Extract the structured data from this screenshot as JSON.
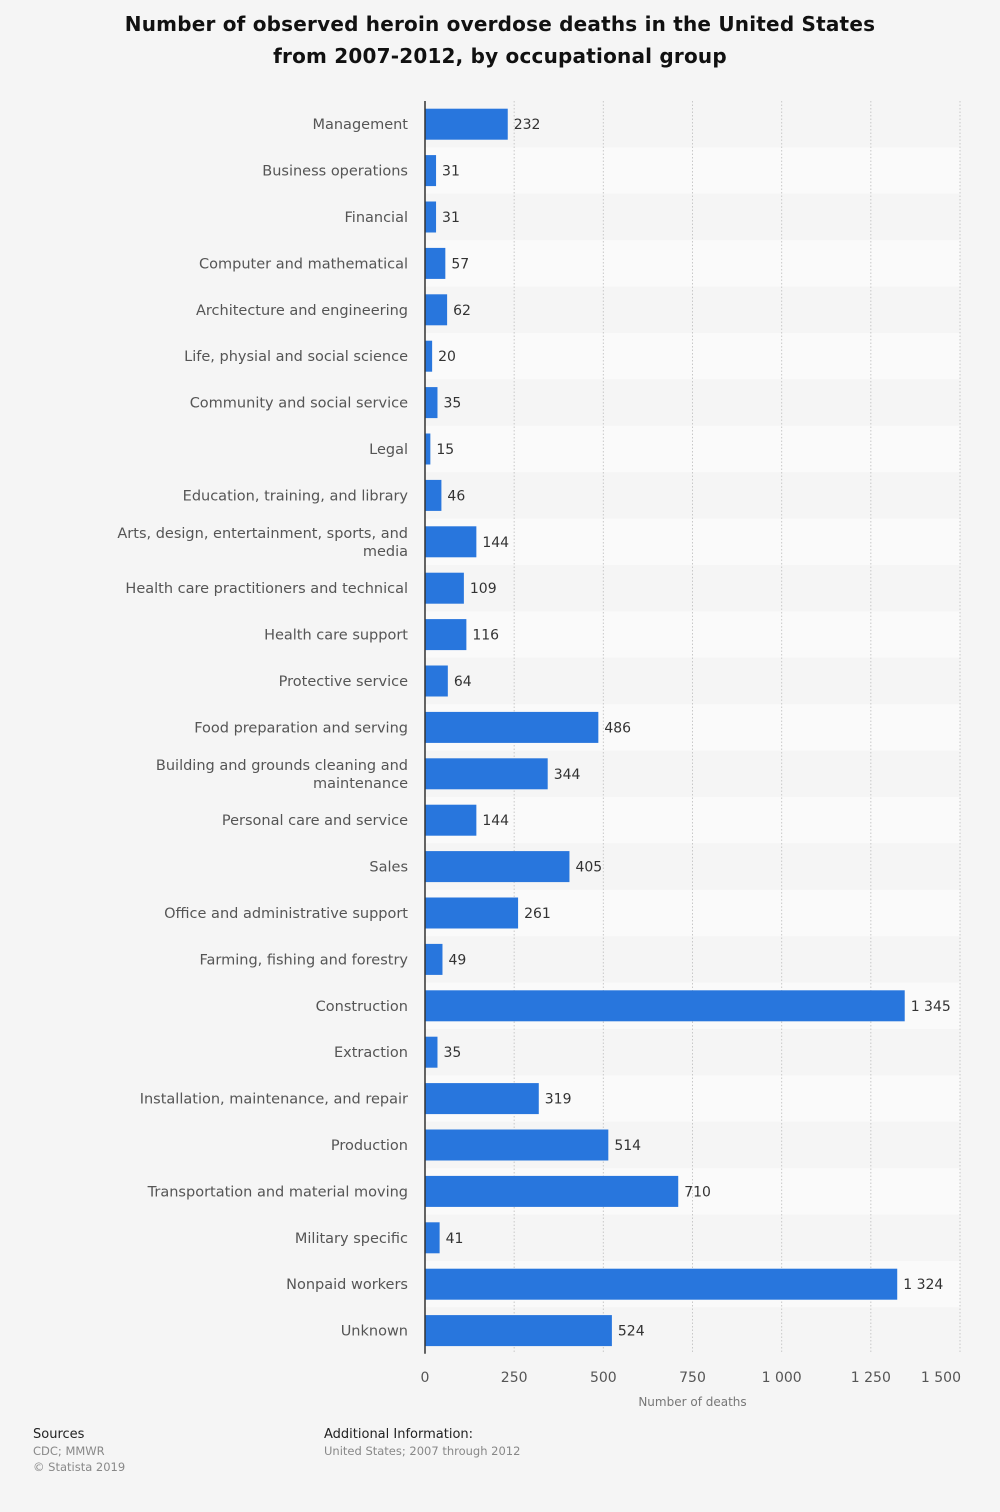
{
  "chart_data": {
    "type": "bar",
    "orientation": "horizontal",
    "title_line1": "Number of observed heroin overdose deaths in the United States",
    "title_line2": "from 2007-2012, by occupational group",
    "xlabel": "Number of deaths",
    "xlim": [
      0,
      1500
    ],
    "xticks": [
      0,
      250,
      500,
      750,
      1000,
      1250,
      1500
    ],
    "xtick_labels": [
      "0",
      "250",
      "500",
      "750",
      "1 000",
      "1 250",
      "1 500"
    ],
    "grid": true,
    "bar_color": "#2876dd",
    "categories": [
      "Management",
      "Business operations",
      "Financial",
      "Computer and mathematical",
      "Architecture and engineering",
      "Life, physial and social science",
      "Community and social service",
      "Legal",
      "Education, training, and library",
      "Arts, design, entertainment, sports, and media",
      "Health care practitioners and technical",
      "Health care support",
      "Protective service",
      "Food preparation and serving",
      "Building and grounds cleaning and maintenance",
      "Personal care and service",
      "Sales",
      "Office and administrative support",
      "Farming, fishing and forestry",
      "Construction",
      "Extraction",
      "Installation, maintenance, and repair",
      "Production",
      "Transportation and material moving",
      "Military specific",
      "Nonpaid workers",
      "Unknown"
    ],
    "category_label_lines": [
      [
        "Management"
      ],
      [
        "Business operations"
      ],
      [
        "Financial"
      ],
      [
        "Computer and mathematical"
      ],
      [
        "Architecture and engineering"
      ],
      [
        "Life, physial and social science"
      ],
      [
        "Community and social service"
      ],
      [
        "Legal"
      ],
      [
        "Education, training, and library"
      ],
      [
        "Arts, design, entertainment, sports, and",
        "media"
      ],
      [
        "Health care practitioners and technical"
      ],
      [
        "Health care support"
      ],
      [
        "Protective service"
      ],
      [
        "Food preparation and serving"
      ],
      [
        "Building and grounds cleaning and",
        "maintenance"
      ],
      [
        "Personal care and service"
      ],
      [
        "Sales"
      ],
      [
        "Office and administrative support"
      ],
      [
        "Farming, fishing and forestry"
      ],
      [
        "Construction"
      ],
      [
        "Extraction"
      ],
      [
        "Installation, maintenance, and repair"
      ],
      [
        "Production"
      ],
      [
        "Transportation and material moving"
      ],
      [
        "Military specific"
      ],
      [
        "Nonpaid workers"
      ],
      [
        "Unknown"
      ]
    ],
    "values": [
      232,
      31,
      31,
      57,
      62,
      20,
      35,
      15,
      46,
      144,
      109,
      116,
      64,
      486,
      344,
      144,
      405,
      261,
      49,
      1345,
      35,
      319,
      514,
      710,
      41,
      1324,
      524
    ],
    "value_labels": [
      "232",
      "31",
      "31",
      "57",
      "62",
      "20",
      "35",
      "15",
      "46",
      "144",
      "109",
      "116",
      "64",
      "486",
      "344",
      "144",
      "405",
      "261",
      "49",
      "1 345",
      "35",
      "319",
      "514",
      "710",
      "41",
      "1 324",
      "524"
    ]
  },
  "footer": {
    "sources_label": "Sources",
    "sources_line1": "CDC; MMWR",
    "sources_line2": "© Statista 2019",
    "additional_label": "Additional Information:",
    "additional_text": "United States; 2007 through 2012"
  }
}
